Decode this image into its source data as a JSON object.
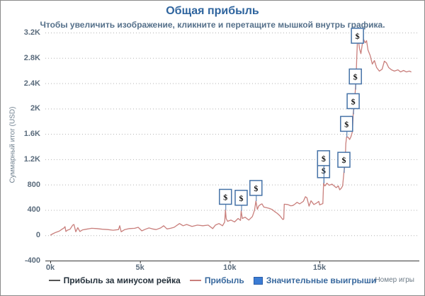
{
  "chart_data": {
    "type": "line",
    "title": "Общая прибыль",
    "subtitle": "Чтобы увеличить изображение, кликните и перетащите мышкой внутрь графика.",
    "xlabel": "Номер игры",
    "ylabel": "Суммарный итог (USD)",
    "xlim": [
      0,
      20600
    ],
    "ylim": [
      -400,
      3256
    ],
    "grid": "horizontal dotted",
    "legend_position": "bottom",
    "x_ticks": [
      {
        "label": "0k",
        "value": 0
      },
      {
        "label": "5k",
        "value": 5000
      },
      {
        "label": "10k",
        "value": 10000
      },
      {
        "label": "15k",
        "value": 15000
      }
    ],
    "y_ticks": [
      {
        "label": "-400",
        "value": -400
      },
      {
        "label": "0",
        "value": 0
      },
      {
        "label": "400",
        "value": 400
      },
      {
        "label": "800",
        "value": 800
      },
      {
        "label": "1.2K",
        "value": 1200
      },
      {
        "label": "1.6K",
        "value": 1600
      },
      {
        "label": "2K",
        "value": 2000
      },
      {
        "label": "2.4K",
        "value": 2400
      },
      {
        "label": "2.8K",
        "value": 2800
      },
      {
        "label": "3.2K",
        "value": 3200
      }
    ],
    "series": [
      {
        "name": "Прибыль за минусом рейка",
        "type": "line",
        "color": "#555555",
        "legend_text_color": "#26323c",
        "visible": false,
        "points": []
      },
      {
        "name": "Прибыль",
        "type": "line",
        "color": "#c97f7c",
        "legend_text_color": "#39699e",
        "visible": true,
        "points": [
          [
            0,
            0
          ],
          [
            150,
            25
          ],
          [
            300,
            45
          ],
          [
            500,
            65
          ],
          [
            650,
            95
          ],
          [
            760,
            115
          ],
          [
            820,
            135
          ],
          [
            870,
            60
          ],
          [
            950,
            80
          ],
          [
            1100,
            95
          ],
          [
            1250,
            160
          ],
          [
            1320,
            170
          ],
          [
            1420,
            55
          ],
          [
            1530,
            120
          ],
          [
            1650,
            60
          ],
          [
            1800,
            85
          ],
          [
            2000,
            95
          ],
          [
            2300,
            110
          ],
          [
            2600,
            105
          ],
          [
            2900,
            95
          ],
          [
            3200,
            90
          ],
          [
            3500,
            80
          ],
          [
            3800,
            90
          ],
          [
            3870,
            150
          ],
          [
            3950,
            55
          ],
          [
            4150,
            90
          ],
          [
            4400,
            105
          ],
          [
            4700,
            110
          ],
          [
            4900,
            125
          ],
          [
            5100,
            70
          ],
          [
            5300,
            95
          ],
          [
            5500,
            115
          ],
          [
            5700,
            100
          ],
          [
            5900,
            90
          ],
          [
            6150,
            115
          ],
          [
            6320,
            150
          ],
          [
            6500,
            100
          ],
          [
            6700,
            110
          ],
          [
            6900,
            125
          ],
          [
            7200,
            185
          ],
          [
            7400,
            150
          ],
          [
            7600,
            170
          ],
          [
            7900,
            140
          ],
          [
            8200,
            160
          ],
          [
            8500,
            150
          ],
          [
            8800,
            160
          ],
          [
            9050,
            105
          ],
          [
            9200,
            160
          ],
          [
            9400,
            185
          ],
          [
            9600,
            150
          ],
          [
            9720,
            210
          ],
          [
            9760,
            400
          ],
          [
            9800,
            265
          ],
          [
            9880,
            220
          ],
          [
            10070,
            240
          ],
          [
            10270,
            210
          ],
          [
            10470,
            265
          ],
          [
            10600,
            235
          ],
          [
            10640,
            385
          ],
          [
            10700,
            265
          ],
          [
            10860,
            285
          ],
          [
            11060,
            240
          ],
          [
            11260,
            295
          ],
          [
            11380,
            395
          ],
          [
            11460,
            540
          ],
          [
            11540,
            410
          ],
          [
            11620,
            465
          ],
          [
            11720,
            485
          ],
          [
            11800,
            495
          ],
          [
            11900,
            445
          ],
          [
            12050,
            435
          ],
          [
            12200,
            425
          ],
          [
            12370,
            405
          ],
          [
            12500,
            375
          ],
          [
            12650,
            345
          ],
          [
            12800,
            305
          ],
          [
            12900,
            270
          ],
          [
            12960,
            250
          ],
          [
            13010,
            255
          ],
          [
            13040,
            490
          ],
          [
            13230,
            485
          ],
          [
            13400,
            465
          ],
          [
            13520,
            470
          ],
          [
            13650,
            495
          ],
          [
            13750,
            520
          ],
          [
            13900,
            495
          ],
          [
            14100,
            535
          ],
          [
            14220,
            608
          ],
          [
            14300,
            592
          ],
          [
            14420,
            460
          ],
          [
            14530,
            545
          ],
          [
            14690,
            485
          ],
          [
            14820,
            505
          ],
          [
            14960,
            535
          ],
          [
            15010,
            480
          ],
          [
            15190,
            500
          ],
          [
            15230,
            820
          ],
          [
            15300,
            778
          ],
          [
            15420,
            822
          ],
          [
            15540,
            788
          ],
          [
            15700,
            808
          ],
          [
            15930,
            752
          ],
          [
            16050,
            778
          ],
          [
            16130,
            718
          ],
          [
            16210,
            742
          ],
          [
            16290,
            778
          ],
          [
            16360,
            985
          ],
          [
            16430,
            1130
          ],
          [
            16470,
            1445
          ],
          [
            16510,
            1552
          ],
          [
            16600,
            1548
          ],
          [
            16680,
            1512
          ],
          [
            16760,
            1560
          ],
          [
            16840,
            1640
          ],
          [
            16880,
            1910
          ],
          [
            16920,
            2030
          ],
          [
            16960,
            2145
          ],
          [
            17000,
            2300
          ],
          [
            17040,
            2480
          ],
          [
            17080,
            2815
          ],
          [
            17115,
            3062
          ],
          [
            17155,
            3118
          ],
          [
            17230,
            2948
          ],
          [
            17310,
            2868
          ],
          [
            17390,
            3018
          ],
          [
            17465,
            3092
          ],
          [
            17545,
            3038
          ],
          [
            17625,
            3072
          ],
          [
            17705,
            2925
          ],
          [
            17825,
            2838
          ],
          [
            17945,
            2702
          ],
          [
            18065,
            2758
          ],
          [
            18185,
            2648
          ],
          [
            18335,
            2592
          ],
          [
            18495,
            2622
          ],
          [
            18615,
            2748
          ],
          [
            18735,
            2722
          ],
          [
            18855,
            2648
          ],
          [
            19015,
            2612
          ],
          [
            19175,
            2592
          ],
          [
            19375,
            2612
          ],
          [
            19525,
            2578
          ],
          [
            19685,
            2602
          ],
          [
            19845,
            2578
          ],
          [
            20005,
            2592
          ],
          [
            20120,
            2578
          ]
        ]
      },
      {
        "name": "Значительные выигрыши",
        "type": "flags",
        "color": "#3b7cd4",
        "legend_text_color": "#39699e",
        "flag_label": "$",
        "flag_border_color": "#4572a7",
        "visible": true,
        "points": [
          [
            9760,
            400
          ],
          [
            10640,
            385
          ],
          [
            11460,
            540
          ],
          [
            15230,
            820
          ],
          [
            15230,
            820
          ],
          [
            16360,
            985
          ],
          [
            16510,
            1552
          ],
          [
            16880,
            1910
          ],
          [
            17000,
            2300
          ],
          [
            17115,
            3062
          ]
        ]
      }
    ],
    "colors": {
      "title": "#2e649e",
      "subtitle": "#55708a",
      "axis_labels": "#5a6b7c",
      "gridline": "#b3b3b3",
      "axis_line": "#3a3a3a",
      "flag_fill": "#ffffff"
    }
  }
}
